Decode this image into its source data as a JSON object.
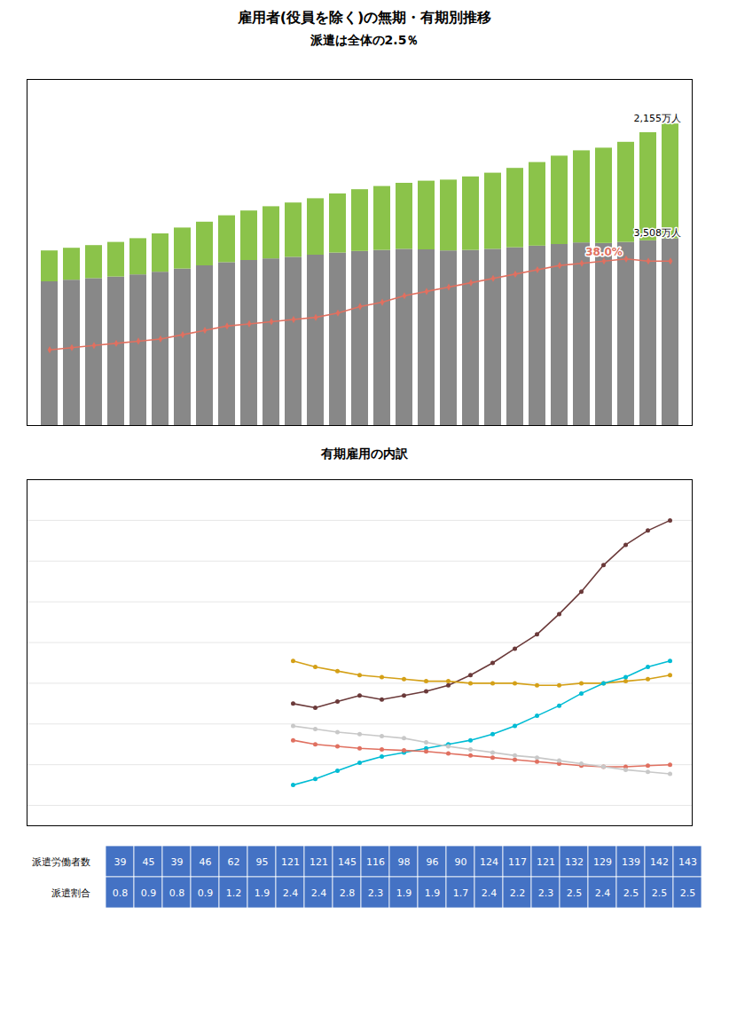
{
  "chart_data": [
    {
      "type": "bar",
      "stacked": true,
      "title": "雇用者(役員を除く)の無期・有期別推移",
      "categories": [
        null,
        null,
        null,
        null,
        null,
        null,
        null,
        null,
        null,
        null,
        null,
        null,
        null,
        null,
        null,
        null,
        null,
        null,
        null,
        null,
        null,
        null,
        null,
        null,
        null,
        null,
        null,
        null,
        null
      ],
      "series": [
        {
          "color": "#888888",
          "values": [
            2700,
            2730,
            2760,
            2790,
            2830,
            2880,
            2940,
            3000,
            3060,
            3100,
            3130,
            3160,
            3200,
            3240,
            3270,
            3290,
            3310,
            3300,
            3280,
            3290,
            3310,
            3340,
            3370,
            3400,
            3430,
            3420,
            3440,
            3470,
            3508
          ],
          "value_labels": [
            null,
            null,
            null,
            null,
            null,
            null,
            null,
            null,
            null,
            null,
            null,
            null,
            null,
            null,
            null,
            null,
            null,
            null,
            null,
            null,
            null,
            null,
            null,
            null,
            null,
            null,
            null,
            null,
            "3,508万人"
          ]
        },
        {
          "color": "#8BC34A",
          "values": [
            580,
            600,
            620,
            650,
            680,
            720,
            770,
            820,
            880,
            930,
            980,
            1020,
            1060,
            1110,
            1160,
            1200,
            1240,
            1290,
            1330,
            1380,
            1430,
            1490,
            1570,
            1660,
            1730,
            1790,
            1880,
            2030,
            2155
          ],
          "value_labels": [
            null,
            null,
            null,
            null,
            null,
            null,
            null,
            null,
            null,
            null,
            null,
            null,
            null,
            null,
            null,
            null,
            null,
            null,
            null,
            null,
            null,
            null,
            null,
            null,
            null,
            null,
            null,
            null,
            "2,155万人"
          ]
        },
        {
          "type": "line",
          "axis": "y2",
          "color": "#E07060",
          "marker": "diamond",
          "values": [
            17.5,
            18.0,
            18.5,
            19.0,
            19.5,
            20.0,
            21.0,
            22.0,
            23.0,
            23.5,
            24.0,
            24.5,
            25.0,
            26.0,
            27.5,
            28.5,
            30.0,
            31.0,
            32.0,
            33.0,
            34.0,
            35.0,
            36.0,
            37.0,
            37.5,
            38.0,
            38.5,
            38.0,
            38.0
          ],
          "value_labels": [
            null,
            null,
            null,
            null,
            null,
            null,
            null,
            null,
            null,
            null,
            null,
            null,
            null,
            null,
            null,
            null,
            null,
            null,
            null,
            null,
            null,
            null,
            null,
            null,
            null,
            "38.0%",
            null,
            null,
            null
          ]
        }
      ],
      "ylim": [
        0,
        6500
      ],
      "y2lim": [
        0,
        80
      ],
      "tick_labels": false,
      "annotations": [
        "派遣は全体の2.5％"
      ]
    },
    {
      "type": "line",
      "categories": [
        null,
        null,
        null,
        null,
        null,
        null,
        null,
        null,
        null,
        null,
        null,
        null,
        null,
        null,
        null,
        null,
        null,
        null,
        null,
        null,
        null,
        null,
        null,
        null,
        null,
        null,
        null,
        null,
        null
      ],
      "series": [
        {
          "color": "#6B3A3A",
          "marker": "circle",
          "values": [
            null,
            null,
            null,
            null,
            null,
            null,
            null,
            null,
            null,
            null,
            null,
            600,
            580,
            610,
            640,
            620,
            640,
            660,
            690,
            740,
            800,
            870,
            940,
            1040,
            1150,
            1280,
            1380,
            1450,
            1500
          ]
        },
        {
          "color": "#D4A017",
          "marker": "circle",
          "values": [
            null,
            null,
            null,
            null,
            null,
            null,
            null,
            null,
            null,
            null,
            null,
            810,
            780,
            760,
            740,
            730,
            720,
            710,
            710,
            700,
            700,
            700,
            690,
            690,
            700,
            700,
            710,
            720,
            740
          ]
        },
        {
          "color": "#00BCD4",
          "marker": "circle",
          "values": [
            null,
            null,
            null,
            null,
            null,
            null,
            null,
            null,
            null,
            null,
            null,
            200,
            230,
            270,
            310,
            340,
            360,
            380,
            400,
            420,
            450,
            490,
            540,
            590,
            650,
            700,
            730,
            780,
            810
          ]
        },
        {
          "color": "#E07060",
          "marker": "circle",
          "values": [
            null,
            null,
            null,
            null,
            null,
            null,
            null,
            null,
            null,
            null,
            null,
            420,
            400,
            390,
            380,
            375,
            370,
            365,
            355,
            345,
            335,
            325,
            315,
            305,
            295,
            290,
            290,
            295,
            300
          ]
        },
        {
          "color": "#C8C8C8",
          "marker": "circle",
          "values": [
            null,
            null,
            null,
            null,
            null,
            null,
            null,
            null,
            null,
            null,
            null,
            490,
            475,
            460,
            450,
            440,
            430,
            410,
            390,
            375,
            360,
            345,
            335,
            320,
            305,
            290,
            275,
            265,
            255
          ]
        }
      ],
      "ylim": [
        0,
        1700
      ],
      "yticks": [
        100,
        300,
        500,
        700,
        900,
        1100,
        1300,
        1500
      ],
      "grid": true,
      "tick_labels": false,
      "annotations": [
        "有期雇用の内訳"
      ]
    },
    {
      "type": "table",
      "color": "#4472C4",
      "series": [
        {
          "name": "派遣労働者数",
          "values": [
            39,
            45,
            39,
            46,
            62,
            95,
            121,
            121,
            145,
            116,
            98,
            96,
            90,
            124,
            117,
            121,
            132,
            129,
            139,
            142,
            143
          ]
        },
        {
          "name": "派遣割合",
          "values": [
            0.8,
            0.9,
            0.8,
            0.9,
            1.2,
            1.9,
            2.4,
            2.4,
            2.8,
            2.3,
            1.9,
            1.9,
            1.7,
            2.4,
            2.2,
            2.3,
            2.5,
            2.4,
            2.5,
            2.5,
            2.5
          ]
        }
      ]
    }
  ]
}
